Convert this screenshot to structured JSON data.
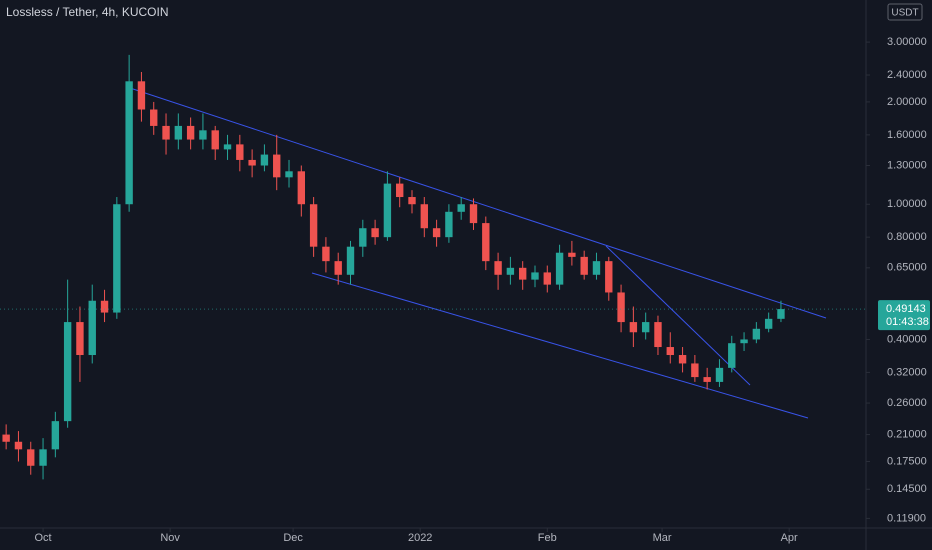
{
  "chart_data": {
    "type": "candlestick",
    "title": "Lossless / Tether, 4h, KUCOIN",
    "currency": "USDT",
    "log_scale": true,
    "grid": false,
    "up_color": "#26a69a",
    "down_color": "#ef5350",
    "x": [
      -9,
      -6,
      -3,
      0,
      3,
      6,
      9,
      12,
      15,
      18,
      21,
      24,
      27,
      30,
      33,
      36,
      39,
      42,
      45,
      48,
      51,
      54,
      57,
      60,
      63,
      66,
      69,
      72,
      75,
      78,
      81,
      84,
      87,
      90,
      93,
      96,
      99,
      102,
      105,
      108,
      111,
      114,
      117,
      120,
      123,
      126,
      129,
      132,
      135,
      138,
      141,
      144,
      147,
      150,
      153,
      156,
      159,
      162,
      165,
      168,
      171,
      174,
      177,
      180
    ],
    "open": [
      0.21,
      0.2,
      0.19,
      0.17,
      0.19,
      0.23,
      0.45,
      0.36,
      0.52,
      0.48,
      1.0,
      2.3,
      1.9,
      1.7,
      1.55,
      1.7,
      1.55,
      1.65,
      1.45,
      1.5,
      1.35,
      1.3,
      1.4,
      1.2,
      1.25,
      1.0,
      0.75,
      0.68,
      0.62,
      0.75,
      0.85,
      0.8,
      1.15,
      1.05,
      1.0,
      0.85,
      0.8,
      0.95,
      1.0,
      0.88,
      0.68,
      0.62,
      0.65,
      0.6,
      0.63,
      0.58,
      0.72,
      0.7,
      0.62,
      0.68,
      0.55,
      0.45,
      0.42,
      0.45,
      0.38,
      0.36,
      0.34,
      0.31,
      0.3,
      0.33,
      0.39,
      0.4,
      0.43,
      0.46
    ],
    "high": [
      0.225,
      0.215,
      0.2,
      0.205,
      0.245,
      0.6,
      0.5,
      0.58,
      0.56,
      1.05,
      2.75,
      2.45,
      2.0,
      1.85,
      1.85,
      1.8,
      1.85,
      1.7,
      1.6,
      1.6,
      1.45,
      1.5,
      1.6,
      1.35,
      1.3,
      1.05,
      0.8,
      0.72,
      0.78,
      0.9,
      0.9,
      1.25,
      1.2,
      1.1,
      1.05,
      0.9,
      1.0,
      1.05,
      1.04,
      0.92,
      0.72,
      0.7,
      0.68,
      0.66,
      0.66,
      0.76,
      0.78,
      0.73,
      0.72,
      0.7,
      0.58,
      0.5,
      0.48,
      0.47,
      0.42,
      0.38,
      0.36,
      0.33,
      0.35,
      0.41,
      0.42,
      0.45,
      0.48,
      0.52
    ],
    "low": [
      0.19,
      0.175,
      0.16,
      0.155,
      0.18,
      0.22,
      0.3,
      0.34,
      0.45,
      0.46,
      0.95,
      1.75,
      1.6,
      1.4,
      1.45,
      1.45,
      1.45,
      1.35,
      1.35,
      1.25,
      1.2,
      1.25,
      1.1,
      1.12,
      0.92,
      0.7,
      0.63,
      0.58,
      0.58,
      0.7,
      0.76,
      0.78,
      0.98,
      0.94,
      0.8,
      0.75,
      0.77,
      0.9,
      0.84,
      0.64,
      0.56,
      0.58,
      0.56,
      0.57,
      0.55,
      0.56,
      0.66,
      0.6,
      0.6,
      0.52,
      0.42,
      0.38,
      0.4,
      0.36,
      0.34,
      0.32,
      0.3,
      0.285,
      0.29,
      0.32,
      0.37,
      0.39,
      0.42,
      0.45
    ],
    "close": [
      0.2,
      0.19,
      0.17,
      0.19,
      0.23,
      0.45,
      0.36,
      0.52,
      0.48,
      1.0,
      2.3,
      1.9,
      1.7,
      1.55,
      1.7,
      1.55,
      1.65,
      1.45,
      1.5,
      1.35,
      1.3,
      1.4,
      1.2,
      1.25,
      1.0,
      0.75,
      0.68,
      0.62,
      0.75,
      0.85,
      0.8,
      1.15,
      1.05,
      1.0,
      0.85,
      0.8,
      0.95,
      1.0,
      0.88,
      0.68,
      0.62,
      0.65,
      0.6,
      0.63,
      0.58,
      0.72,
      0.7,
      0.62,
      0.68,
      0.55,
      0.45,
      0.42,
      0.45,
      0.38,
      0.36,
      0.34,
      0.31,
      0.3,
      0.33,
      0.39,
      0.4,
      0.43,
      0.46,
      0.49143
    ],
    "last_price_label": "0.49143",
    "countdown": "01:43:38",
    "xlim": [
      -10.5,
      200.5
    ],
    "xticks": [
      {
        "value": 0,
        "label": "Oct"
      },
      {
        "value": 31,
        "label": "Nov"
      },
      {
        "value": 61,
        "label": "Dec"
      },
      {
        "value": 92,
        "label": "2022"
      },
      {
        "value": 123,
        "label": "Feb"
      },
      {
        "value": 151,
        "label": "Mar"
      },
      {
        "value": 182,
        "label": "Apr"
      }
    ],
    "ylim": [
      0.11,
      3.99
    ],
    "yticks": [
      {
        "value": 3,
        "label": "3.00000"
      },
      {
        "value": 2.4,
        "label": "2.40000"
      },
      {
        "value": 2,
        "label": "2.00000"
      },
      {
        "value": 1.6,
        "label": "1.60000"
      },
      {
        "value": 1.3,
        "label": "1.30000"
      },
      {
        "value": 1,
        "label": "1.00000"
      },
      {
        "value": 0.8,
        "label": "0.80000"
      },
      {
        "value": 0.65,
        "label": "0.65000"
      },
      {
        "value": 0.4,
        "label": "0.40000"
      },
      {
        "value": 0.32,
        "label": "0.32000"
      },
      {
        "value": 0.26,
        "label": "0.26000"
      },
      {
        "value": 0.21,
        "label": "0.21000"
      },
      {
        "value": 0.175,
        "label": "0.17500"
      },
      {
        "value": 0.145,
        "label": "0.14500"
      },
      {
        "value": 0.119,
        "label": "0.11900"
      }
    ]
  }
}
